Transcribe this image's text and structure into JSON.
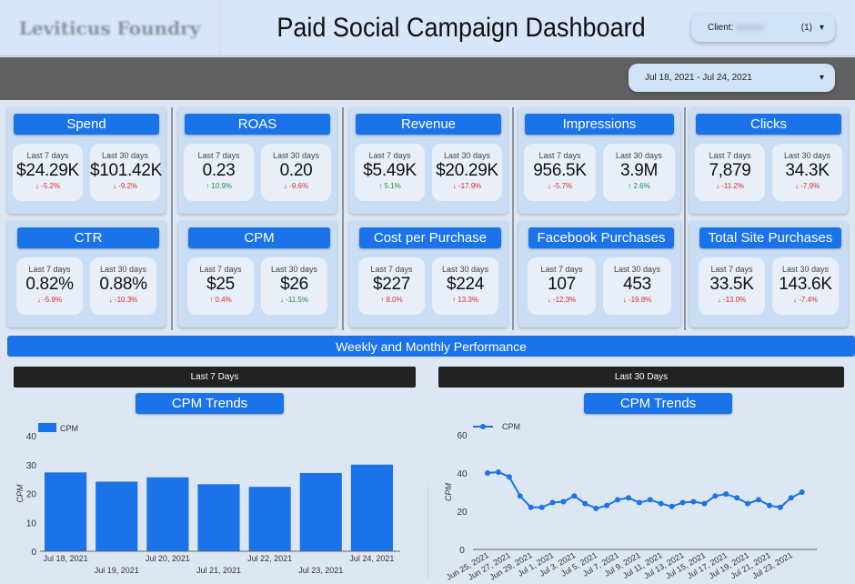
{
  "header": {
    "logo_text": "Leviticus Foundry",
    "title": "Paid Social Campaign Dashboard",
    "client_label": "Client:",
    "client_value": "(blurred)",
    "client_count": "(1)",
    "date_range": "Jul 18, 2021 - Jul 24, 2021"
  },
  "colors": {
    "accent": "#1a73e8",
    "negative": "#d93025",
    "positive": "#1e8e3e",
    "band": "#616161"
  },
  "metrics": [
    {
      "title": "Spend",
      "l7": "$24.29K",
      "l7_change": "-5.2%",
      "l7_dir": "down",
      "l7_tone": "bad",
      "l30": "$101.42K",
      "l30_change": "-9.2%",
      "l30_dir": "down",
      "l30_tone": "bad"
    },
    {
      "title": "ROAS",
      "l7": "0.23",
      "l7_change": "10.9%",
      "l7_dir": "up",
      "l7_tone": "good",
      "l30": "0.20",
      "l30_change": "-9.6%",
      "l30_dir": "down",
      "l30_tone": "bad"
    },
    {
      "title": "Revenue",
      "l7": "$5.49K",
      "l7_change": "5.1%",
      "l7_dir": "up",
      "l7_tone": "good",
      "l30": "$20.29K",
      "l30_change": "-17.9%",
      "l30_dir": "down",
      "l30_tone": "bad"
    },
    {
      "title": "Impressions",
      "l7": "956.5K",
      "l7_change": "-5.7%",
      "l7_dir": "down",
      "l7_tone": "bad",
      "l30": "3.9M",
      "l30_change": "2.6%",
      "l30_dir": "up",
      "l30_tone": "good"
    },
    {
      "title": "Clicks",
      "l7": "7,879",
      "l7_change": "-11.2%",
      "l7_dir": "down",
      "l7_tone": "bad",
      "l30": "34.3K",
      "l30_change": "-7.9%",
      "l30_dir": "down",
      "l30_tone": "bad"
    },
    {
      "title": "CTR",
      "l7": "0.82%",
      "l7_change": "-5.9%",
      "l7_dir": "down",
      "l7_tone": "bad",
      "l30": "0.88%",
      "l30_change": "-10.3%",
      "l30_dir": "down",
      "l30_tone": "bad"
    },
    {
      "title": "CPM",
      "l7": "$25",
      "l7_change": "0.4%",
      "l7_dir": "up",
      "l7_tone": "bad",
      "l30": "$26",
      "l30_change": "-11.5%",
      "l30_dir": "down",
      "l30_tone": "good"
    },
    {
      "title": "Cost per Purchase",
      "l7": "$227",
      "l7_change": "8.0%",
      "l7_dir": "up",
      "l7_tone": "bad",
      "l30": "$224",
      "l30_change": "13.3%",
      "l30_dir": "up",
      "l30_tone": "bad"
    },
    {
      "title": "Facebook Purchases",
      "l7": "107",
      "l7_change": "-12.3%",
      "l7_dir": "down",
      "l7_tone": "bad",
      "l30": "453",
      "l30_change": "-19.8%",
      "l30_dir": "down",
      "l30_tone": "bad"
    },
    {
      "title": "Total Site Purchases",
      "l7": "33.5K",
      "l7_change": "-13.0%",
      "l7_dir": "down",
      "l7_tone": "bad",
      "l30": "143.6K",
      "l30_change": "-7.4%",
      "l30_dir": "down",
      "l30_tone": "bad"
    }
  ],
  "labels": {
    "last7": "Last 7 days",
    "last30": "Last 30 days"
  },
  "section": {
    "banner": "Weekly and Monthly Performance",
    "left_bar": "Last 7 Days",
    "right_bar": "Last 30 Days",
    "left_chart_title": "CPM Trends",
    "right_chart_title": "CPM Trends"
  },
  "chart_data": [
    {
      "type": "bar",
      "title": "CPM Trends",
      "legend": "CPM",
      "legend_position": "top-left",
      "ylabel": "CPM",
      "ylim": [
        0,
        40
      ],
      "yticks": [
        0,
        10,
        20,
        30,
        40
      ],
      "grid": false,
      "categories": [
        "Jul 18, 2021",
        "Jul 19, 2021",
        "Jul 20, 2021",
        "Jul 21, 2021",
        "Jul 22, 2021",
        "Jul 23, 2021",
        "Jul 24, 2021"
      ],
      "values": [
        27.3,
        24.1,
        25.6,
        23.2,
        22.3,
        27.1,
        30.0
      ]
    },
    {
      "type": "line",
      "title": "CPM Trends",
      "legend": "CPM",
      "legend_position": "top-left",
      "ylabel": "CPM",
      "ylim": [
        0,
        60
      ],
      "yticks": [
        0,
        20,
        40,
        60
      ],
      "grid": false,
      "x": [
        "Jun 25, 2021",
        "Jun 26, 2021",
        "Jun 27, 2021",
        "Jun 28, 2021",
        "Jun 29, 2021",
        "Jun 30, 2021",
        "Jul 1, 2021",
        "Jul 2, 2021",
        "Jul 3, 2021",
        "Jul 4, 2021",
        "Jul 5, 2021",
        "Jul 6, 2021",
        "Jul 7, 2021",
        "Jul 8, 2021",
        "Jul 9, 2021",
        "Jul 10, 2021",
        "Jul 11, 2021",
        "Jul 12, 2021",
        "Jul 13, 2021",
        "Jul 14, 2021",
        "Jul 15, 2021",
        "Jul 16, 2021",
        "Jul 17, 2021",
        "Jul 18, 2021",
        "Jul 19, 2021",
        "Jul 20, 2021",
        "Jul 21, 2021",
        "Jul 22, 2021",
        "Jul 23, 2021",
        "Jul 24, 2021"
      ],
      "xtick_labels": [
        "Jun 25, 2021",
        "Jun 27, 2021",
        "Jun 29, 2021",
        "Jul 1, 2021",
        "Jul 3, 2021",
        "Jul 5, 2021",
        "Jul 7, 2021",
        "Jul 9, 2021",
        "Jul 11, 2021",
        "Jul 13, 2021",
        "Jul 15, 2021",
        "Jul 17, 2021",
        "Jul 19, 2021",
        "Jul 21, 2021",
        "Jul 23, 2021"
      ],
      "values": [
        40,
        40.5,
        38,
        28,
        22,
        22,
        24.5,
        25,
        28,
        24,
        21.5,
        23,
        26,
        27,
        24.5,
        26,
        24,
        22.5,
        24.5,
        25,
        24,
        28,
        29,
        27,
        24,
        26,
        23,
        22,
        27,
        30
      ]
    }
  ]
}
